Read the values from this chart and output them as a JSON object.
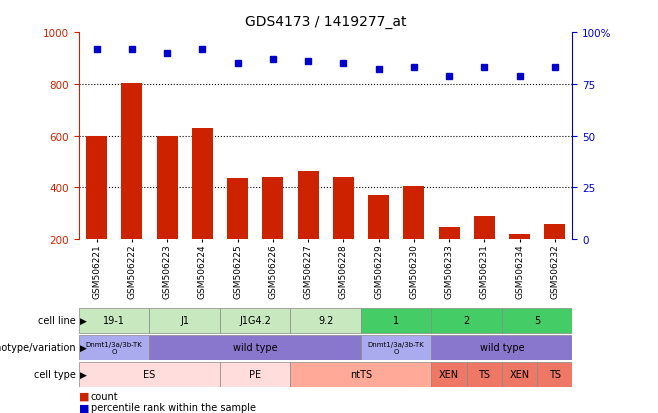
{
  "title": "GDS4173 / 1419277_at",
  "samples": [
    "GSM506221",
    "GSM506222",
    "GSM506223",
    "GSM506224",
    "GSM506225",
    "GSM506226",
    "GSM506227",
    "GSM506228",
    "GSM506229",
    "GSM506230",
    "GSM506233",
    "GSM506231",
    "GSM506234",
    "GSM506232"
  ],
  "counts": [
    600,
    805,
    600,
    630,
    435,
    440,
    465,
    440,
    370,
    405,
    245,
    290,
    220,
    260
  ],
  "percentile": [
    92,
    92,
    90,
    92,
    85,
    87,
    86,
    85,
    82,
    83,
    79,
    83,
    79,
    83
  ],
  "ylim_left": [
    200,
    1000
  ],
  "ylim_right": [
    0,
    100
  ],
  "yticks_left": [
    200,
    400,
    600,
    800,
    1000
  ],
  "yticks_right": [
    0,
    25,
    50,
    75,
    100
  ],
  "hlines": [
    400,
    600,
    800
  ],
  "bar_color": "#cc2200",
  "dot_color": "#0000cc",
  "background_color": "#ffffff",
  "axis_color_left": "#cc2200",
  "axis_color_right": "#0000cc",
  "cell_line_segs": [
    {
      "text": "19-1",
      "start": 0,
      "end": 2,
      "color": "#c8e8c0"
    },
    {
      "text": "J1",
      "start": 2,
      "end": 4,
      "color": "#c8e8c0"
    },
    {
      "text": "J1G4.2",
      "start": 4,
      "end": 6,
      "color": "#c8e8c0"
    },
    {
      "text": "9.2",
      "start": 6,
      "end": 8,
      "color": "#c8e8c0"
    },
    {
      "text": "1",
      "start": 8,
      "end": 10,
      "color": "#44cc66"
    },
    {
      "text": "2",
      "start": 10,
      "end": 12,
      "color": "#44cc66"
    },
    {
      "text": "5",
      "start": 12,
      "end": 14,
      "color": "#44cc66"
    }
  ],
  "genotype_segs": [
    {
      "text": "Dnmt1/3a/3b-TK\nO",
      "start": 0,
      "end": 2,
      "color": "#aaaaee"
    },
    {
      "text": "wild type",
      "start": 2,
      "end": 8,
      "color": "#8877cc"
    },
    {
      "text": "Dnmt1/3a/3b-TK\nO",
      "start": 8,
      "end": 10,
      "color": "#aaaaee"
    },
    {
      "text": "wild type",
      "start": 10,
      "end": 14,
      "color": "#8877cc"
    }
  ],
  "celltype_segs": [
    {
      "text": "ES",
      "start": 0,
      "end": 4,
      "color": "#ffdddd"
    },
    {
      "text": "PE",
      "start": 4,
      "end": 6,
      "color": "#ffdddd"
    },
    {
      "text": "ntTS",
      "start": 6,
      "end": 10,
      "color": "#ffaa99"
    },
    {
      "text": "XEN",
      "start": 10,
      "end": 11,
      "color": "#ee7766"
    },
    {
      "text": "TS",
      "start": 11,
      "end": 12,
      "color": "#ee7766"
    },
    {
      "text": "XEN",
      "start": 12,
      "end": 13,
      "color": "#ee7766"
    },
    {
      "text": "TS",
      "start": 13,
      "end": 14,
      "color": "#ee7766"
    }
  ],
  "row_labels": [
    "cell line",
    "genotype/variation",
    "cell type"
  ],
  "legend_count_color": "#cc2200",
  "legend_dot_color": "#0000cc"
}
